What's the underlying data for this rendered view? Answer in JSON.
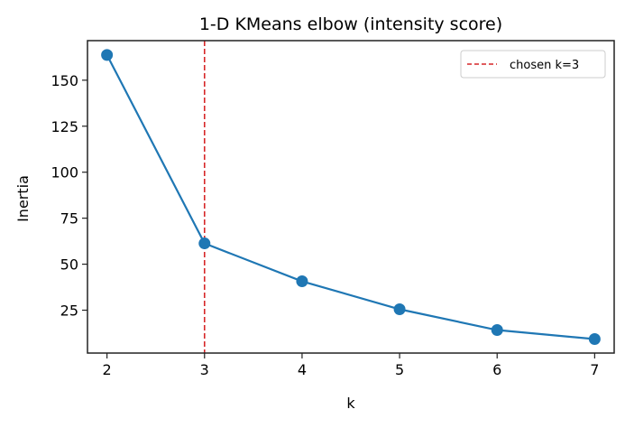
{
  "chart_data": {
    "type": "line",
    "title": "1-D KMeans elbow (intensity score)",
    "xlabel": "k",
    "ylabel": "Inertia",
    "x": [
      2,
      3,
      4,
      5,
      6,
      7
    ],
    "series": [
      {
        "name": "inertia",
        "values": [
          163.7,
          61.3,
          40.7,
          25.5,
          14.2,
          9.3
        ],
        "color": "#1f77b4",
        "marker": "circle"
      }
    ],
    "vline": {
      "x": 3,
      "label": "chosen k=3",
      "color": "#d62728",
      "style": "dashed"
    },
    "xticks": [
      2,
      3,
      4,
      5,
      6,
      7
    ],
    "yticks": [
      25,
      50,
      75,
      100,
      125,
      150
    ],
    "xlim": [
      1.8,
      7.2
    ],
    "ylim": [
      1.7,
      171.5
    ],
    "grid": false,
    "legend_position": "upper right",
    "legend": [
      "chosen k=3"
    ]
  }
}
